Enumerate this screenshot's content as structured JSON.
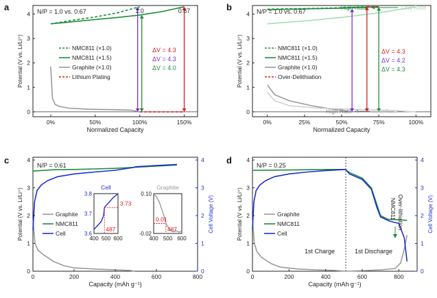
{
  "chart_data": [
    {
      "panel": "a",
      "type": "line",
      "title": "N/P = 1.0 vs. 0.67",
      "xlabel": "Normalized Capacity",
      "ylabel": "Potential (V vs. Li/Li⁺)",
      "xlim": [
        -0.2,
        1.65
      ],
      "ylim": [
        -0.2,
        4.35
      ],
      "xticks": [
        0,
        0.5,
        1.0,
        1.5
      ],
      "xtick_labels": [
        "0%",
        "50%",
        "100%",
        "150%"
      ],
      "yticks": [
        0,
        1,
        2,
        3,
        4
      ],
      "ytick_labels": [
        "0",
        "1",
        "2",
        "3",
        "4"
      ],
      "legend": [
        "NMC811 (×1.0)",
        "NMC811 (×1.5)",
        "Graphite (×1.0)",
        "Lithium Plating"
      ],
      "legend_placement": "center",
      "series": [
        {
          "name": "NMC811 (×1.0)",
          "color": "#1e8c3c",
          "dash": "dashed",
          "x": [
            0,
            0.1,
            0.25,
            0.5,
            0.75,
            0.9,
            1.0
          ],
          "y": [
            3.6,
            3.66,
            3.75,
            3.88,
            4.05,
            4.2,
            4.3
          ]
        },
        {
          "name": "NMC811 (×1.5)",
          "color": "#1e8c3c",
          "dash": "solid",
          "x": [
            0,
            0.15,
            0.4,
            0.75,
            1.0,
            1.25,
            1.5
          ],
          "y": [
            3.6,
            3.65,
            3.74,
            3.86,
            3.96,
            4.1,
            4.3
          ]
        },
        {
          "name": "Graphite (×1.0)",
          "color": "#9a9a9a",
          "dash": "solid",
          "x": [
            0,
            0.02,
            0.05,
            0.1,
            0.2,
            0.35,
            0.5,
            0.7,
            0.9,
            1.0
          ],
          "y": [
            1.85,
            0.55,
            0.3,
            0.22,
            0.15,
            0.12,
            0.1,
            0.09,
            0.07,
            0.0
          ]
        },
        {
          "name": "Lithium Plating",
          "color": "#e31a1c",
          "dash": "dashed",
          "x": [
            1.0,
            1.5
          ],
          "y": [
            0.0,
            0.0
          ]
        }
      ],
      "annotations": [
        {
          "text": "1.0",
          "x": 1.0
        },
        {
          "text": "0.67",
          "x": 1.5
        },
        {
          "text": "ΔV = 4.3",
          "color": "#e31a1c"
        },
        {
          "text": "ΔV = 4.3",
          "color": "#7b2fd8"
        },
        {
          "text": "ΔV = 4.0",
          "color": "#1e8c3c"
        }
      ]
    },
    {
      "panel": "b",
      "type": "line",
      "title": "N/P = 1.0 vs. 0.67",
      "xlabel": "Normalized Capacity",
      "ylabel": "Potential (V vs. Li/Li⁺)",
      "xlim": [
        -0.1,
        1.1
      ],
      "ylim": [
        -0.2,
        4.35
      ],
      "xticks": [
        0,
        0.25,
        0.5,
        0.75,
        1.0
      ],
      "xtick_labels": [
        "0%",
        "25%",
        "50%",
        "75%",
        "100%"
      ],
      "yticks": [
        0,
        1,
        2,
        3,
        4
      ],
      "ytick_labels": [
        "0",
        "1",
        "2",
        "3",
        "4"
      ],
      "legend": [
        "NMC811 (×1.0)",
        "NMC811 (×1.5)",
        "Graphite (×1.0)",
        "Over-Delithiation"
      ],
      "legend_placement": "center",
      "series": [
        {
          "name": "NMC811 (×1.0)",
          "color": "#1e8c3c",
          "dash": "dashed",
          "x": [
            0,
            0.2,
            0.45,
            0.67
          ],
          "y": [
            4.2,
            4.22,
            4.25,
            4.3
          ]
        },
        {
          "name": "NMC811 (×1.5)",
          "color": "#1e8c3c",
          "dash": "solid",
          "x": [
            0,
            0.25,
            0.5,
            0.75
          ],
          "y": [
            4.18,
            4.21,
            4.24,
            4.3
          ]
        },
        {
          "name": "NMC811 low rate",
          "color": "#a8dcb4",
          "dash": "solid",
          "x": [
            0,
            0.25,
            0.5,
            0.75,
            1.0
          ],
          "y": [
            3.6,
            3.72,
            3.86,
            4.05,
            4.3
          ]
        },
        {
          "name": "Graphite (×1.0)",
          "color": "#9a9a9a",
          "dash": "solid",
          "x": [
            0,
            0.05,
            0.15,
            0.3,
            0.45,
            0.57
          ],
          "y": [
            1.1,
            0.7,
            0.45,
            0.25,
            0.1,
            0.0
          ]
        },
        {
          "name": "Graphite low rate",
          "color": "#cfcfcf",
          "dash": "solid",
          "x": [
            0,
            0.05,
            0.15,
            0.35,
            0.6,
            0.85,
            1.0
          ],
          "y": [
            0.8,
            0.45,
            0.25,
            0.15,
            0.1,
            0.05,
            0.0
          ]
        },
        {
          "name": "Over-Delithiation",
          "color": "#e31a1c",
          "dash": "dashed",
          "x": [
            0.67,
            0.75
          ],
          "y": [
            4.3,
            4.3
          ]
        }
      ],
      "annotations": [
        {
          "text": "High Rate",
          "color": "#1e8c3c"
        },
        {
          "text": "Low Rate",
          "color": "#a8dcb4"
        },
        {
          "text": "High Rate",
          "color": "#8a8a8a"
        },
        {
          "text": "Low Rate",
          "color": "#cfcfcf"
        },
        {
          "text": "ΔV = 4.3",
          "color": "#e31a1c"
        },
        {
          "text": "ΔV = 4.2",
          "color": "#7b2fd8"
        },
        {
          "text": "ΔV = 4.3",
          "color": "#1e8c3c"
        }
      ]
    },
    {
      "panel": "c",
      "type": "line",
      "title": "N/P = 0.61",
      "xlabel": "Capacity (mAh g⁻¹)",
      "ylabel": "Potential (V vs. Li/Li⁺)",
      "y2label": "Cell Voltage (V)",
      "xlim": [
        0,
        800
      ],
      "ylim": [
        0,
        4.1
      ],
      "y2lim": [
        0,
        4.1
      ],
      "xticks": [
        0,
        200,
        400,
        600,
        800
      ],
      "yticks": [
        0,
        1,
        2,
        3,
        4
      ],
      "y2ticks": [
        0,
        1,
        2,
        3,
        4
      ],
      "legend": [
        "Graphite",
        "NMC811",
        "Cell"
      ],
      "legend_placement": "center-left",
      "series": [
        {
          "name": "Graphite",
          "color": "#9a9a9a",
          "x": [
            0,
            10,
            25,
            50,
            100,
            150,
            200,
            300,
            400,
            470,
            487,
            495
          ],
          "y": [
            1.85,
            1.0,
            0.75,
            0.6,
            0.35,
            0.2,
            0.12,
            0.08,
            0.05,
            0.03,
            0.01,
            0.0
          ]
        },
        {
          "name": "NMC811",
          "color": "#1e8c3c",
          "x": [
            0,
            100,
            200,
            300,
            400,
            500,
            600,
            700
          ],
          "y": [
            3.6,
            3.65,
            3.66,
            3.68,
            3.7,
            3.74,
            3.78,
            3.82
          ]
        },
        {
          "name": "Cell",
          "color": "#1f2fd0",
          "x": [
            0,
            8,
            20,
            40,
            70,
            120,
            200,
            300,
            400,
            487,
            500,
            600,
            700
          ],
          "y": [
            1.5,
            2.5,
            2.9,
            3.1,
            3.25,
            3.4,
            3.5,
            3.57,
            3.63,
            3.73,
            3.76,
            3.8,
            3.84
          ]
        }
      ],
      "insets": [
        {
          "title": "Cell",
          "xlim": [
            400,
            600
          ],
          "ylim": [
            3.6,
            3.8
          ],
          "xticks": [
            400,
            500,
            600
          ],
          "yticks": [
            3.6,
            3.7,
            3.8
          ],
          "marker": {
            "x": 487,
            "y": 3.73,
            "labels": [
              "3.73",
              "487"
            ]
          },
          "x": [
            400,
            430,
            460,
            480,
            487,
            500,
            530,
            560,
            600
          ],
          "y": [
            3.62,
            3.64,
            3.66,
            3.69,
            3.73,
            3.74,
            3.76,
            3.78,
            3.8
          ]
        },
        {
          "title": "Graphite",
          "xlim": [
            400,
            600
          ],
          "ylim": [
            -0.02,
            0.1
          ],
          "xticks": [
            400,
            500,
            600
          ],
          "yticks": [
            -0.02,
            0.01,
            0.1
          ],
          "ytick_labels": [
            "-0.02",
            "",
            "0.10"
          ],
          "marker": {
            "x": 487,
            "y": 0.01,
            "labels": [
              "0.01",
              "487"
            ]
          },
          "x": [
            400,
            420,
            440,
            460,
            475,
            487,
            500,
            520,
            540,
            560,
            580,
            600
          ],
          "y": [
            0.1,
            0.09,
            0.075,
            0.05,
            0.03,
            0.01,
            0.0,
            -0.01,
            -0.015,
            -0.012,
            -0.016,
            -0.013
          ]
        }
      ]
    },
    {
      "panel": "d",
      "type": "line",
      "title": "N/P = 0.25",
      "xlabel": "Capacity (mAh g⁻¹)",
      "ylabel": "Potential (V vs. Li/Li⁺)",
      "y2label": "Cell Voltage (V)",
      "xlim": [
        0,
        900
      ],
      "ylim": [
        0,
        4.1
      ],
      "y2lim": [
        0,
        4.1
      ],
      "xticks": [
        0,
        200,
        400,
        600,
        800
      ],
      "yticks": [
        0,
        1,
        2,
        3,
        4
      ],
      "y2ticks": [
        0,
        1,
        2,
        3,
        4
      ],
      "legend": [
        "Graphite",
        "NMC811",
        "Cell"
      ],
      "legend_placement": "center-left",
      "annotations": [
        {
          "text": "1st Charge"
        },
        {
          "text": "1st Discharge"
        },
        {
          "text": "NMC811 Over-lithiation"
        }
      ],
      "series": [
        {
          "name": "Graphite",
          "color": "#9a9a9a",
          "x": [
            0,
            10,
            25,
            50,
            100,
            150,
            250,
            350,
            450,
            510,
            600,
            700,
            780,
            810,
            830,
            845
          ],
          "y": [
            1.85,
            1.0,
            0.7,
            0.5,
            0.28,
            0.15,
            0.08,
            0.05,
            0.03,
            0.0,
            0.02,
            0.05,
            0.1,
            0.3,
            0.8,
            1.3
          ]
        },
        {
          "name": "NMC811",
          "color": "#1e8c3c",
          "x": [
            0,
            200,
            400,
            510,
            530,
            600,
            650,
            680,
            700,
            740,
            800,
            845
          ],
          "y": [
            3.63,
            3.64,
            3.66,
            3.66,
            3.55,
            3.35,
            3.0,
            2.4,
            2.0,
            1.87,
            1.85,
            1.83
          ]
        },
        {
          "name": "Cell",
          "color": "#1f2fd0",
          "x": [
            0,
            8,
            20,
            40,
            70,
            120,
            200,
            300,
            400,
            510,
            530,
            600,
            650,
            680,
            700,
            750,
            800,
            830,
            845
          ],
          "y": [
            1.5,
            2.5,
            2.9,
            3.1,
            3.25,
            3.4,
            3.5,
            3.57,
            3.62,
            3.66,
            3.5,
            3.3,
            2.95,
            2.3,
            1.95,
            1.8,
            1.72,
            1.2,
            0.35
          ]
        }
      ]
    }
  ]
}
